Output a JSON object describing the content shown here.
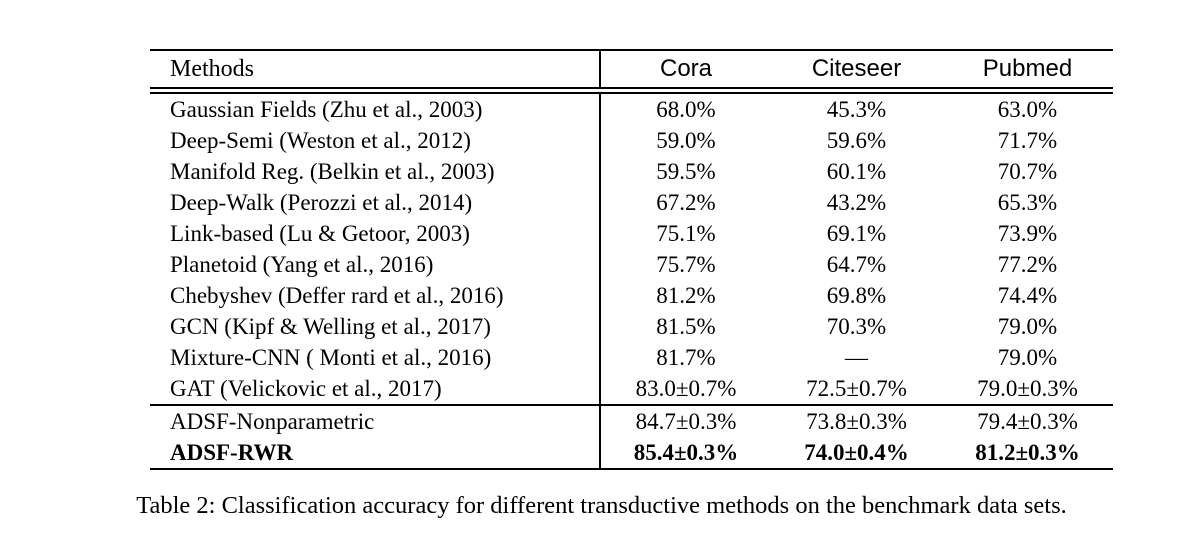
{
  "table": {
    "columns": [
      "Methods",
      "Cora",
      "Citeseer",
      "Pubmed"
    ],
    "rows": [
      {
        "method": "Gaussian Fields (Zhu et al., 2003)",
        "values": [
          "68.0%",
          "45.3%",
          "63.0%"
        ],
        "bold": false,
        "group": "baseline"
      },
      {
        "method": "Deep-Semi (Weston et al., 2012)",
        "values": [
          "59.0%",
          "59.6%",
          "71.7%"
        ],
        "bold": false,
        "group": "baseline"
      },
      {
        "method": "Manifold Reg. (Belkin et al., 2003)",
        "values": [
          "59.5%",
          "60.1%",
          "70.7%"
        ],
        "bold": false,
        "group": "baseline"
      },
      {
        "method": "Deep-Walk (Perozzi et al., 2014)",
        "values": [
          "67.2%",
          "43.2%",
          "65.3%"
        ],
        "bold": false,
        "group": "baseline"
      },
      {
        "method": "Link-based (Lu & Getoor, 2003)",
        "values": [
          "75.1%",
          "69.1%",
          "73.9%"
        ],
        "bold": false,
        "group": "baseline"
      },
      {
        "method": "Planetoid (Yang et al., 2016)",
        "values": [
          "75.7%",
          "64.7%",
          "77.2%"
        ],
        "bold": false,
        "group": "baseline"
      },
      {
        "method": "Chebyshev (Deffer rard et al., 2016)",
        "values": [
          "81.2%",
          "69.8%",
          "74.4%"
        ],
        "bold": false,
        "group": "baseline"
      },
      {
        "method": "GCN (Kipf & Welling et al., 2017)",
        "values": [
          "81.5%",
          "70.3%",
          "79.0%"
        ],
        "bold": false,
        "group": "baseline"
      },
      {
        "method": "Mixture-CNN ( Monti et al., 2016)",
        "values": [
          "81.7%",
          "—",
          "79.0%"
        ],
        "bold": false,
        "group": "baseline"
      },
      {
        "method": "GAT (Velickovic et al., 2017)",
        "values": [
          "83.0±0.7%",
          "72.5±0.7%",
          "79.0±0.3%"
        ],
        "bold": false,
        "group": "baseline"
      },
      {
        "method": "ADSF-Nonparametric",
        "values": [
          "84.7±0.3%",
          "73.8±0.3%",
          "79.4±0.3%"
        ],
        "bold": false,
        "group": "ours"
      },
      {
        "method": "ADSF-RWR",
        "values": [
          "85.4±0.3%",
          "74.0±0.4%",
          "81.2±0.3%"
        ],
        "bold": true,
        "group": "ours"
      }
    ]
  },
  "caption": "Table 2: Classification accuracy for different transductive methods on the benchmark data sets."
}
